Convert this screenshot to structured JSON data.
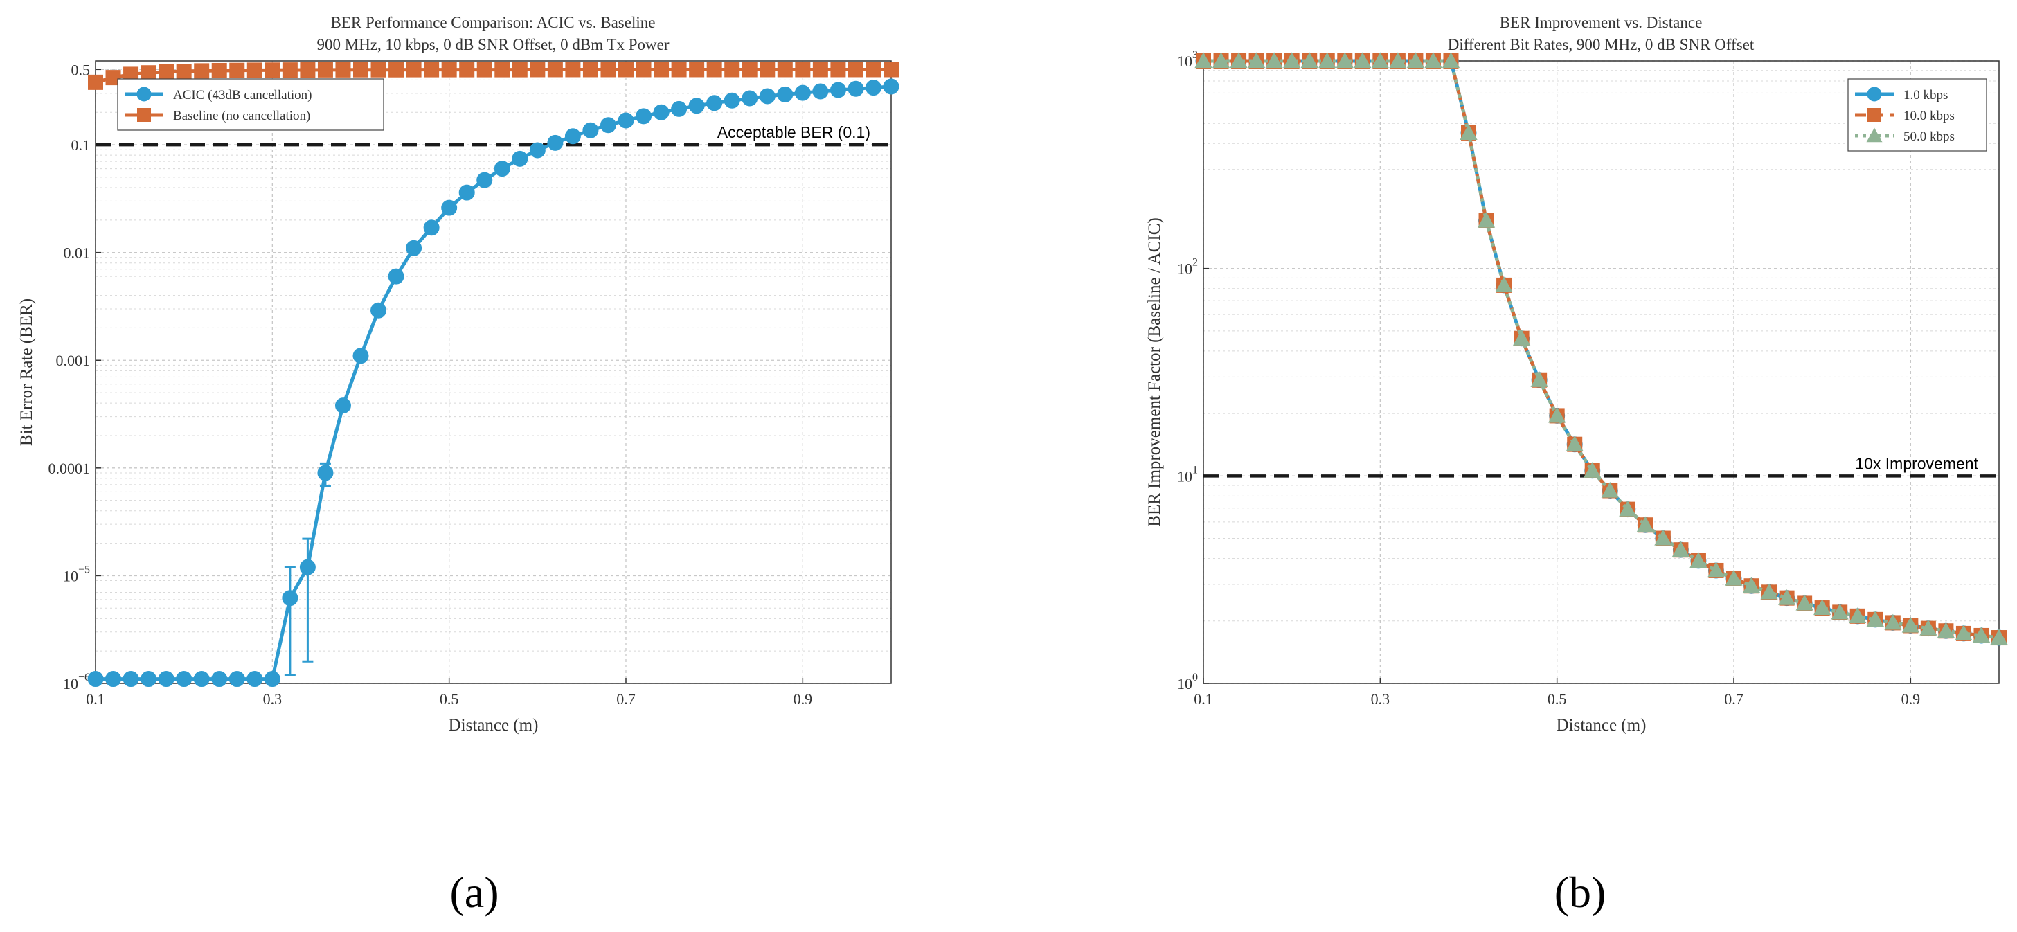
{
  "panels": {
    "a": "(a)",
    "b": "(b)"
  },
  "chart_data": [
    {
      "type": "line",
      "title": "BER Performance Comparison: ACIC vs. Baseline",
      "subtitle": "900 MHz, 10 kbps, 0 dB SNR Offset, 0 dBm Tx Power",
      "xlabel": "Distance (m)",
      "ylabel": "Bit Error Rate (BER)",
      "xlim": [
        0.1,
        1.0
      ],
      "ylim": [
        1e-06,
        0.6
      ],
      "yscale": "log",
      "grid": true,
      "legend": "top-left",
      "x_ticks": [
        "0.1",
        "0.3",
        "0.5",
        "0.7",
        "0.9"
      ],
      "y_ticks": [
        {
          "value": 1e-06,
          "label": "10^-6"
        },
        {
          "value": 1e-05,
          "label": "10^-5"
        },
        {
          "value": 0.0001,
          "label": "0.0001"
        },
        {
          "value": 0.001,
          "label": "0.001"
        },
        {
          "value": 0.01,
          "label": "0.01"
        },
        {
          "value": 0.1,
          "label": "0.1"
        },
        {
          "value": 0.5,
          "label": "0.5"
        }
      ],
      "x": [
        0.1,
        0.12,
        0.14,
        0.16,
        0.18,
        0.2,
        0.22,
        0.24,
        0.26,
        0.28,
        0.3,
        0.32,
        0.34,
        0.36,
        0.38,
        0.4,
        0.42,
        0.44,
        0.46,
        0.48,
        0.5,
        0.52,
        0.54,
        0.56,
        0.58,
        0.6,
        0.62,
        0.64,
        0.66,
        0.68,
        0.7,
        0.72,
        0.74,
        0.76,
        0.78,
        0.8,
        0.82,
        0.84,
        0.86,
        0.88,
        0.9,
        0.92,
        0.94,
        0.96,
        0.98,
        1.0
      ],
      "series": [
        {
          "name": "ACIC (43dB cancellation)",
          "color": "#2e9bd0",
          "marker": "circle",
          "values": [
            1.1e-06,
            1.1e-06,
            1.1e-06,
            1.1e-06,
            1.1e-06,
            1.1e-06,
            1.1e-06,
            1.1e-06,
            1.1e-06,
            1.1e-06,
            1.1e-06,
            6.2e-06,
            1.2e-05,
            9e-05,
            0.00038,
            0.0011,
            0.0029,
            0.006,
            0.011,
            0.017,
            0.026,
            0.036,
            0.047,
            0.06,
            0.074,
            0.089,
            0.104,
            0.12,
            0.136,
            0.152,
            0.168,
            0.184,
            0.2,
            0.215,
            0.23,
            0.244,
            0.257,
            0.27,
            0.282,
            0.293,
            0.303,
            0.313,
            0.322,
            0.331,
            0.339,
            0.347
          ],
          "error_bars": [
            {
              "x": 0.32,
              "low": 1.2e-06,
              "high": 1.2e-05
            },
            {
              "x": 0.34,
              "low": 1.6e-06,
              "high": 2.2e-05
            },
            {
              "x": 0.36,
              "low": 6.8e-05,
              "high": 0.00011
            }
          ]
        },
        {
          "name": "Baseline (no cancellation)",
          "color": "#d46a35",
          "marker": "square",
          "values": [
            0.38,
            0.42,
            0.45,
            0.465,
            0.475,
            0.48,
            0.485,
            0.488,
            0.49,
            0.492,
            0.493,
            0.494,
            0.495,
            0.496,
            0.496,
            0.497,
            0.497,
            0.497,
            0.498,
            0.498,
            0.498,
            0.498,
            0.498,
            0.498,
            0.498,
            0.499,
            0.499,
            0.499,
            0.499,
            0.499,
            0.499,
            0.499,
            0.499,
            0.499,
            0.499,
            0.499,
            0.499,
            0.499,
            0.499,
            0.499,
            0.499,
            0.499,
            0.499,
            0.499,
            0.499,
            0.499
          ]
        }
      ],
      "reference_line": {
        "y": 0.1,
        "label": "Acceptable BER (0.1)",
        "style": "dashed",
        "color": "#1a1a1a"
      }
    },
    {
      "type": "line",
      "title": "BER Improvement vs. Distance",
      "subtitle": "Different Bit Rates, 900 MHz, 0 dB SNR Offset",
      "xlabel": "Distance (m)",
      "ylabel": "BER Improvement Factor (Baseline / ACIC)",
      "xlim": [
        0.1,
        1.0
      ],
      "ylim": [
        1,
        1000
      ],
      "yscale": "log",
      "grid": true,
      "legend": "top-right",
      "x_ticks": [
        "0.1",
        "0.3",
        "0.5",
        "0.7",
        "0.9"
      ],
      "y_ticks": [
        {
          "value": 1,
          "label": "10^0"
        },
        {
          "value": 10,
          "label": "10^1"
        },
        {
          "value": 100,
          "label": "10^2"
        },
        {
          "value": 1000,
          "label": "10^3"
        }
      ],
      "x": [
        0.1,
        0.12,
        0.14,
        0.16,
        0.18,
        0.2,
        0.22,
        0.24,
        0.26,
        0.28,
        0.3,
        0.32,
        0.34,
        0.36,
        0.38,
        0.4,
        0.42,
        0.44,
        0.46,
        0.48,
        0.5,
        0.52,
        0.54,
        0.56,
        0.58,
        0.6,
        0.62,
        0.64,
        0.66,
        0.68,
        0.7,
        0.72,
        0.74,
        0.76,
        0.78,
        0.8,
        0.82,
        0.84,
        0.86,
        0.88,
        0.9,
        0.92,
        0.94,
        0.96,
        0.98,
        1.0
      ],
      "series": [
        {
          "name": "1.0 kbps",
          "color": "#2e9bd0",
          "marker": "circle",
          "values": [
            1000,
            1000,
            1000,
            1000,
            1000,
            1000,
            1000,
            1000,
            1000,
            1000,
            1000,
            1000,
            1000,
            1000,
            1000,
            450,
            170,
            83,
            46,
            29,
            19.5,
            14.2,
            10.6,
            8.5,
            6.9,
            5.8,
            5.0,
            4.4,
            3.9,
            3.5,
            3.2,
            2.95,
            2.75,
            2.58,
            2.43,
            2.31,
            2.2,
            2.11,
            2.03,
            1.96,
            1.9,
            1.84,
            1.79,
            1.74,
            1.7,
            1.66
          ]
        },
        {
          "name": "10.0 kbps",
          "color": "#d46a35",
          "marker": "square",
          "values": [
            1000,
            1000,
            1000,
            1000,
            1000,
            1000,
            1000,
            1000,
            1000,
            1000,
            1000,
            1000,
            1000,
            1000,
            1000,
            450,
            170,
            83,
            46,
            29,
            19.5,
            14.2,
            10.6,
            8.5,
            6.9,
            5.8,
            5.0,
            4.4,
            3.9,
            3.5,
            3.2,
            2.95,
            2.75,
            2.58,
            2.43,
            2.31,
            2.2,
            2.11,
            2.03,
            1.96,
            1.9,
            1.84,
            1.79,
            1.74,
            1.7,
            1.66
          ]
        },
        {
          "name": "50.0 kbps",
          "color": "#8fb394",
          "marker": "triangle",
          "values": [
            1000,
            1000,
            1000,
            1000,
            1000,
            1000,
            1000,
            1000,
            1000,
            1000,
            1000,
            1000,
            1000,
            1000,
            1000,
            450,
            170,
            83,
            46,
            29,
            19.5,
            14.2,
            10.6,
            8.5,
            6.9,
            5.8,
            5.0,
            4.4,
            3.9,
            3.5,
            3.2,
            2.95,
            2.75,
            2.58,
            2.43,
            2.31,
            2.2,
            2.11,
            2.03,
            1.96,
            1.9,
            1.84,
            1.79,
            1.74,
            1.7,
            1.66
          ]
        }
      ],
      "reference_line": {
        "y": 10,
        "label": "10x Improvement",
        "style": "dashed",
        "color": "#1a1a1a"
      }
    }
  ]
}
